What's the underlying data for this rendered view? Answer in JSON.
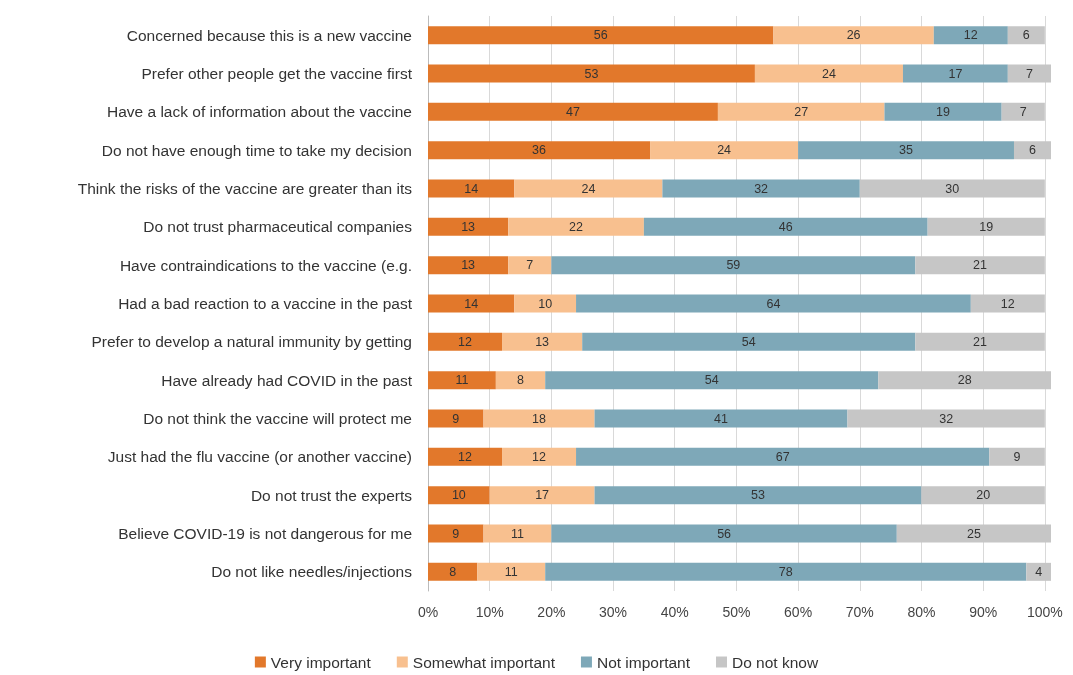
{
  "chart_data": {
    "type": "bar",
    "orientation": "horizontal",
    "stacked": true,
    "data_labels": true,
    "grid": "x",
    "legend": "bottom",
    "categories": [
      "Concerned because this is a new vaccine",
      "Prefer other people get the vaccine first",
      "Have a lack of information about the vaccine",
      "Do not have enough time to take my decision",
      "Think the risks of the vaccine are greater than its",
      "Do not trust pharmaceutical companies",
      "Have contraindications to the vaccine (e.g.",
      "Had a bad reaction to a vaccine in the past",
      "Prefer to develop a natural immunity by getting",
      "Have already had COVID in the past",
      "Do not think the vaccine will protect me",
      "Just had the flu vaccine (or another vaccine)",
      "Do not trust the experts",
      "Believe COVID-19 is not dangerous for me",
      "Do not like needles/injections"
    ],
    "series": [
      {
        "name": "Very important",
        "color": "#e2782b",
        "values": [
          56,
          53,
          47,
          36,
          14,
          13,
          13,
          14,
          12,
          11,
          9,
          12,
          10,
          9,
          8
        ]
      },
      {
        "name": "Somewhat important",
        "color": "#f8c08f",
        "values": [
          26,
          24,
          27,
          24,
          24,
          22,
          7,
          10,
          13,
          8,
          18,
          12,
          17,
          11,
          11
        ]
      },
      {
        "name": "Not important",
        "color": "#7ea8b8",
        "values": [
          12,
          17,
          19,
          35,
          32,
          46,
          59,
          64,
          54,
          54,
          41,
          67,
          53,
          56,
          78
        ]
      },
      {
        "name": "Do not know",
        "color": "#c6c6c6",
        "values": [
          6,
          7,
          7,
          6,
          30,
          19,
          21,
          12,
          21,
          28,
          32,
          9,
          20,
          25,
          4
        ]
      }
    ],
    "xlim": [
      0,
      101
    ],
    "xticks": [
      {
        "value": 0,
        "label": "0%"
      },
      {
        "value": 10,
        "label": "10%"
      },
      {
        "value": 20,
        "label": "20%"
      },
      {
        "value": 30,
        "label": "30%"
      },
      {
        "value": 40,
        "label": "40%"
      },
      {
        "value": 50,
        "label": "50%"
      },
      {
        "value": 60,
        "label": "60%"
      },
      {
        "value": 70,
        "label": "70%"
      },
      {
        "value": 80,
        "label": "80%"
      },
      {
        "value": 90,
        "label": "90%"
      },
      {
        "value": 100,
        "label": "100%"
      }
    ]
  }
}
